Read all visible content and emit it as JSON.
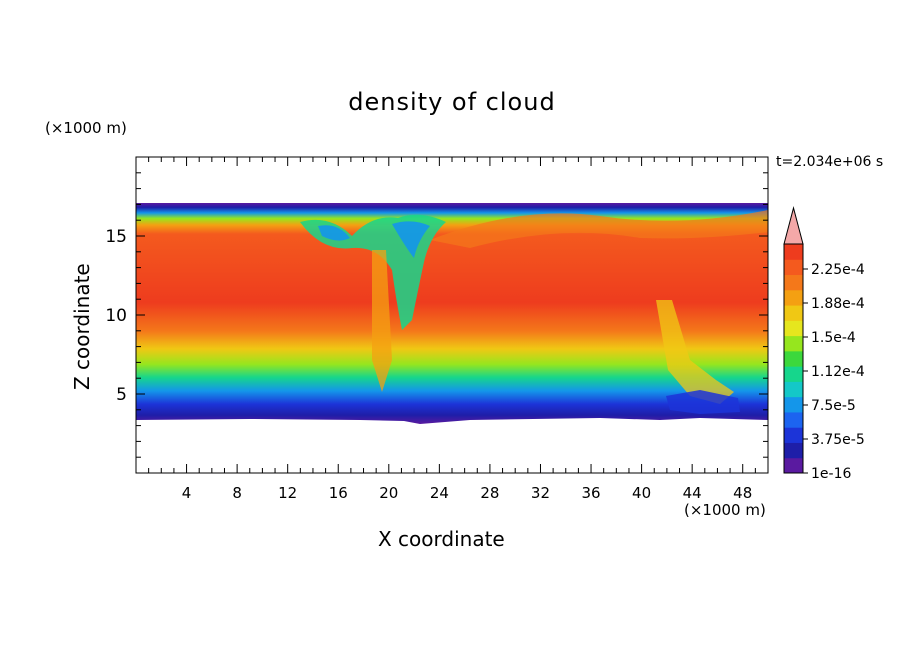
{
  "chart_data": {
    "type": "heatmap",
    "title": "density of cloud",
    "xlabel": "X coordinate",
    "ylabel": "Z coordinate",
    "x_unit": "(×1000 m)",
    "z_unit": "(×1000 m)",
    "time_label": "t=2.034e+06 s",
    "xlim": [
      0,
      50
    ],
    "ylim": [
      0,
      20
    ],
    "x_ticks": [
      "4",
      "8",
      "12",
      "16",
      "20",
      "24",
      "28",
      "32",
      "36",
      "40",
      "44",
      "48"
    ],
    "y_ticks": [
      "5",
      "10",
      "15"
    ],
    "colorbar": {
      "tick_labels": [
        "2.25e-4",
        "1.88e-4",
        "1.5e-4",
        "1.12e-4",
        "7.5e-5",
        "3.75e-5",
        "1e-16"
      ],
      "colors": [
        "#5a1aa0",
        "#1e1ea8",
        "#1c34d8",
        "#1c64f0",
        "#1496ea",
        "#14c8c8",
        "#16d68c",
        "#3cd83c",
        "#96e61e",
        "#e6e61e",
        "#f0c814",
        "#f4a012",
        "#f4781a",
        "#f45a1e",
        "#ee3c1e",
        "#f4a8a8"
      ],
      "extend_max": true
    },
    "field_description": "cloud density concentrated between z≈3.5 and z≈16.8 (x1000 m); maximum (~2.3e-4) in 8–14 km core; lower values near cloud base (~4 km) and top; turbulent plume structures near x≈20–23 and x≈42–46"
  }
}
